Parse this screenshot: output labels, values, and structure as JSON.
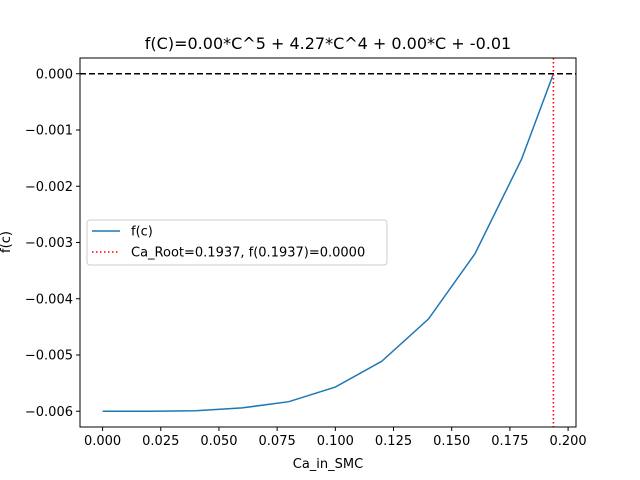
{
  "chart_data": {
    "type": "line",
    "title": "f(C)=0.00*C^5 + 4.27*C^4 + 0.00*C + -0.01",
    "xlabel": "Ca_in_SMC",
    "ylabel": "f(c)",
    "xlim": [
      -0.0097,
      0.2034
    ],
    "ylim": [
      -0.00628,
      0.00028
    ],
    "x_ticks": [
      0.0,
      0.025,
      0.05,
      0.075,
      0.1,
      0.125,
      0.15,
      0.175,
      0.2
    ],
    "x_tick_labels": [
      "0.000",
      "0.025",
      "0.050",
      "0.075",
      "0.100",
      "0.125",
      "0.150",
      "0.175",
      "0.200"
    ],
    "y_ticks": [
      0.0,
      -0.001,
      -0.002,
      -0.003,
      -0.004,
      -0.005,
      -0.006
    ],
    "y_tick_labels": [
      "0.000",
      "−0.001",
      "−0.002",
      "−0.003",
      "−0.004",
      "−0.005",
      "−0.006"
    ],
    "series": [
      {
        "name": "f(c)",
        "color": "#1f77b4",
        "style": "solid",
        "x": [
          0.0,
          0.02,
          0.04,
          0.06,
          0.08,
          0.1,
          0.12,
          0.14,
          0.16,
          0.18,
          0.1937
        ],
        "y": [
          -0.006,
          -0.006,
          -0.00599,
          -0.00594,
          -0.00583,
          -0.00557,
          -0.00511,
          -0.00436,
          -0.0032,
          -0.00152,
          0.0
        ]
      }
    ],
    "reference_lines": [
      {
        "orientation": "horizontal",
        "value": 0.0,
        "color": "#000000",
        "style": "dashed"
      },
      {
        "orientation": "vertical",
        "value": 0.1937,
        "color": "#ff0000",
        "style": "dotted",
        "name": "Ca_Root=0.1937, f(0.1937)=0.0000"
      }
    ],
    "legend": {
      "placement": "center-left",
      "entries": [
        {
          "label": "f(c)",
          "color": "#1f77b4",
          "style": "solid"
        },
        {
          "label": "Ca_Root=0.1937, f(0.1937)=0.0000",
          "color": "#ff0000",
          "style": "dotted"
        }
      ]
    },
    "grid": false
  }
}
